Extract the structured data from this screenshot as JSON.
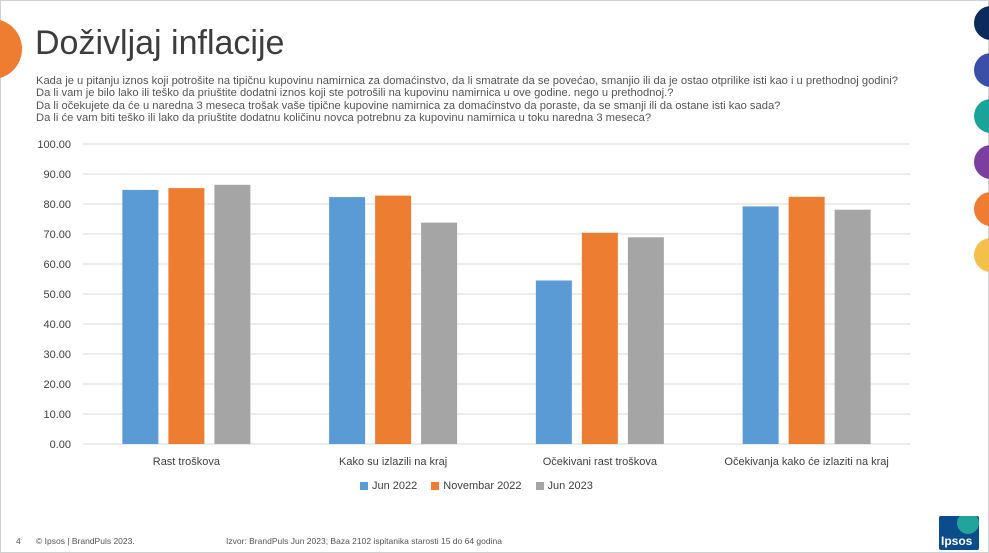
{
  "slide": {
    "title": "Doživljaj inflacije",
    "questions": [
      "Kada je u pitanju iznos koji potrošite na tipičnu kupovinu namirnica za domaćinstvo, da li smatrate da se povećao, smanjio ili da je ostao otprilike isti kao i u prethodnoj godini?",
      "Da li vam je bilo lako ili teško da priuštite dodatni iznos koji ste potrošili na kupovinu namirnica u ove godine. nego u prethodnoj.?",
      "Da li očekujete da će u naredna 3 meseca  trošak vaše tipične kupovine namirnica za domaćinstvo da poraste, da se smanji ili da ostane isti kao sada?",
      "Da li će vam biti teško ili lako da priuštite dodatnu količinu novca potrebnu za kupovinu namirnica u toku naredna 3 meseca?"
    ],
    "page_number": "4",
    "copyright": "© Ipsos | BrandPuls 2023.",
    "source": "Izvor: BrandPuls Jun 2023; Baza 2102 ispitanika starosti 15 do 64 godina",
    "logo_text": "Ipsos",
    "side_colors": [
      "#0d2a5c",
      "#3b4fa8",
      "#1aa39a",
      "#7b3fa0",
      "#ee7d31",
      "#f3c04a"
    ]
  },
  "chart_data": {
    "type": "bar",
    "title": "",
    "xlabel": "",
    "ylabel": "",
    "ylim": [
      0,
      100
    ],
    "ytick_step": 10,
    "categories": [
      "Rast troškova",
      "Kako su izlazili na kraj",
      "Očekivani rast troškova",
      "Očekivanja kako će izlaziti na kraj"
    ],
    "series": [
      {
        "name": "Jun 2022",
        "color": "#5b9bd5",
        "values": [
          84.7,
          82.3,
          54.5,
          79.2
        ]
      },
      {
        "name": "Novembar 2022",
        "color": "#ed7d31",
        "values": [
          85.3,
          82.8,
          70.4,
          82.4
        ]
      },
      {
        "name": "Jun 2023",
        "color": "#a5a5a5",
        "values": [
          86.4,
          73.8,
          68.9,
          78.1
        ]
      }
    ],
    "grid": true,
    "legend": "bottom"
  }
}
